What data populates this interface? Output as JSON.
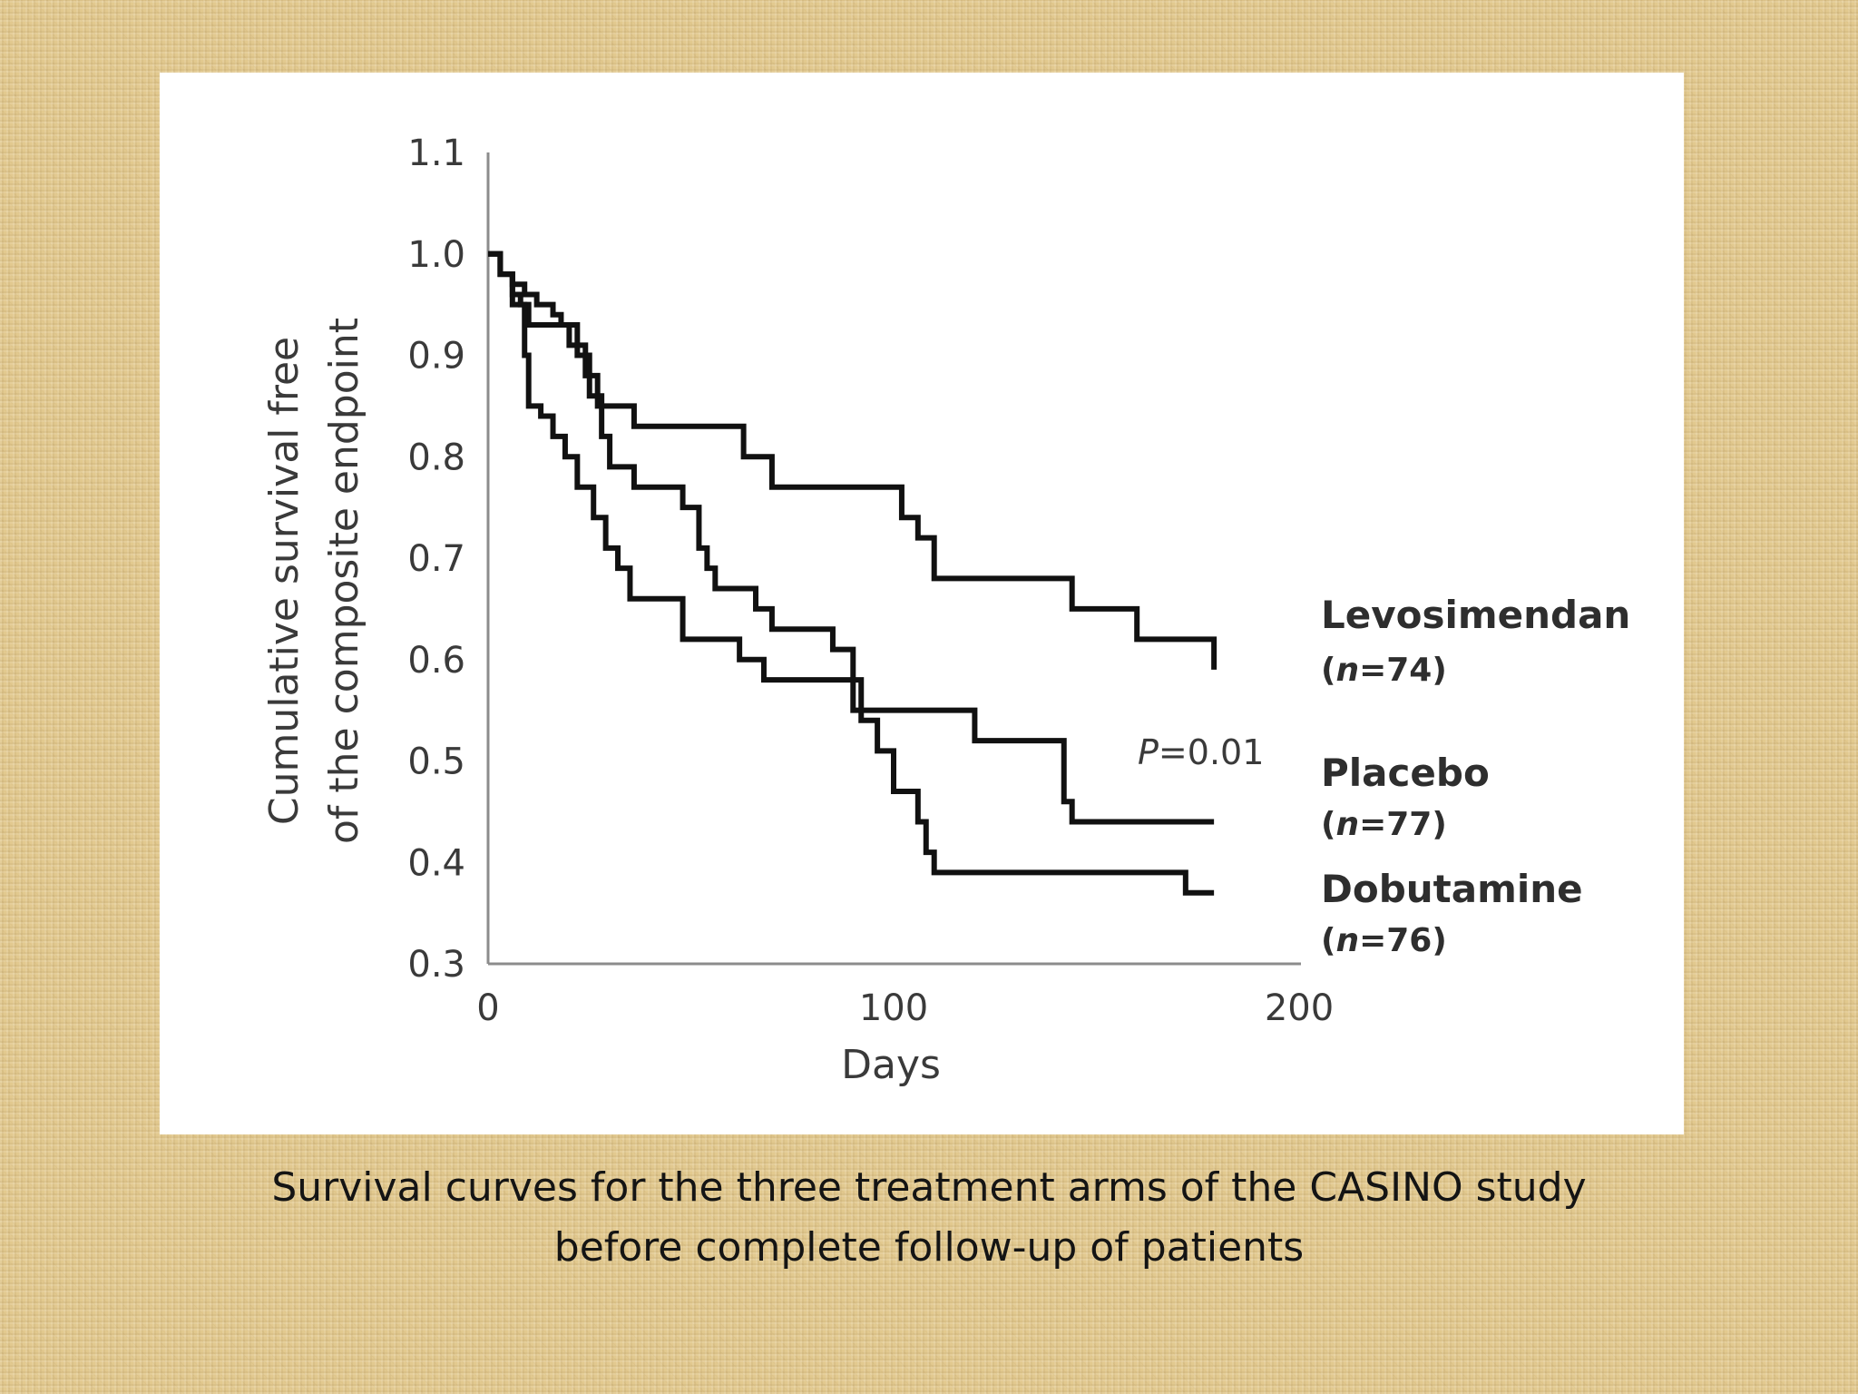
{
  "caption": {
    "line1": "Survival curves for the three treatment arms of the CASINO study",
    "line2": "before complete follow-up of patients"
  },
  "chart_data": {
    "type": "line",
    "step": true,
    "title": "",
    "xlabel": "Days",
    "ylabel_line1": "Cumulative survival  free",
    "ylabel_line2": "of the composite endpoint",
    "xlim": [
      0,
      200
    ],
    "ylim": [
      0.3,
      1.1
    ],
    "xticks": [
      "0",
      "100",
      "200"
    ],
    "yticks": [
      "0.3",
      "0.4",
      "0.5",
      "0.6",
      "0.7",
      "0.8",
      "0.9",
      "1.0",
      "1.1"
    ],
    "grid": false,
    "annotations": {
      "p_label": "P",
      "p_value": "=0.01"
    },
    "series": [
      {
        "name": "Levosimendan",
        "n_label": "n",
        "n_value": "=74",
        "x": [
          0,
          3,
          6,
          9,
          12,
          16,
          18,
          20,
          24,
          27,
          30,
          36,
          60,
          63,
          70,
          100,
          102,
          106,
          110,
          140,
          144,
          154,
          160,
          179,
          179
        ],
        "y": [
          1.0,
          0.98,
          0.97,
          0.96,
          0.95,
          0.94,
          0.93,
          0.91,
          0.88,
          0.85,
          0.85,
          0.83,
          0.83,
          0.8,
          0.77,
          0.77,
          0.74,
          0.72,
          0.68,
          0.68,
          0.65,
          0.65,
          0.62,
          0.62,
          0.59
        ]
      },
      {
        "name": "Placebo",
        "n_label": "n",
        "n_value": "=77",
        "x": [
          0,
          3,
          6,
          8,
          10,
          14,
          22,
          25,
          28,
          30,
          36,
          40,
          48,
          52,
          54,
          56,
          60,
          66,
          70,
          80,
          85,
          90,
          94,
          108,
          120,
          140,
          142,
          144,
          179
        ],
        "y": [
          1.0,
          0.98,
          0.96,
          0.95,
          0.93,
          0.93,
          0.9,
          0.86,
          0.82,
          0.79,
          0.77,
          0.77,
          0.75,
          0.71,
          0.69,
          0.67,
          0.67,
          0.65,
          0.63,
          0.63,
          0.61,
          0.55,
          0.55,
          0.55,
          0.52,
          0.52,
          0.46,
          0.44,
          0.44
        ]
      },
      {
        "name": "Dobutamine",
        "n_label": "n",
        "n_value": "=76",
        "x": [
          0,
          3,
          6,
          9,
          10,
          13,
          16,
          19,
          22,
          26,
          29,
          32,
          35,
          38,
          48,
          52,
          62,
          68,
          88,
          92,
          96,
          100,
          104,
          106,
          108,
          110,
          170,
          172,
          179
        ],
        "y": [
          1.0,
          0.98,
          0.95,
          0.9,
          0.85,
          0.84,
          0.82,
          0.8,
          0.77,
          0.74,
          0.71,
          0.69,
          0.66,
          0.66,
          0.62,
          0.62,
          0.6,
          0.58,
          0.58,
          0.54,
          0.51,
          0.47,
          0.47,
          0.44,
          0.41,
          0.39,
          0.39,
          0.37,
          0.37
        ]
      }
    ]
  }
}
